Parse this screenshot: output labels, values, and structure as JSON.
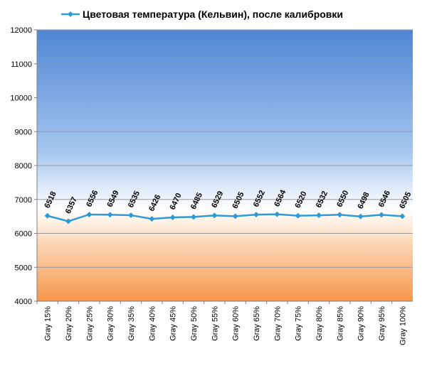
{
  "chart_data": {
    "type": "line",
    "categories": [
      "Gray 15%",
      "Gray 20%",
      "Gray 25%",
      "Gray 30%",
      "Gray 35%",
      "Gray 40%",
      "Gray 45%",
      "Gray 50%",
      "Gray 55%",
      "Gray 60%",
      "Gray 65%",
      "Gray 70%",
      "Gray 75%",
      "Gray 80%",
      "Gray 85%",
      "Gray 90%",
      "Gray 95%",
      "Gray 100%"
    ],
    "series": [
      {
        "name": "Цветовая температура (Кельвин), после калибровки",
        "color": "#2e9bd6",
        "values": [
          6518,
          6357,
          6556,
          6549,
          6535,
          6426,
          6470,
          6485,
          6529,
          6505,
          6552,
          6564,
          6520,
          6532,
          6550,
          6498,
          6546,
          6505
        ]
      }
    ],
    "ylim": [
      4000,
      12000
    ],
    "yticks": [
      4000,
      5000,
      6000,
      7000,
      8000,
      9000,
      10000,
      11000,
      12000
    ],
    "grid": true,
    "legend": "top"
  }
}
